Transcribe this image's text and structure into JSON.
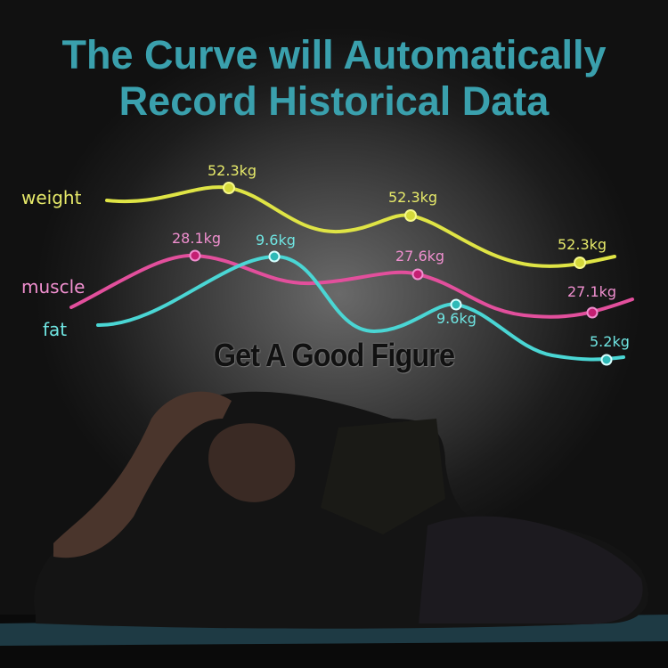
{
  "headline": {
    "line1": "The Curve will Automatically",
    "line2": "Record Historical Data"
  },
  "chart": {
    "series": [
      {
        "name": "weight",
        "color": "#e3e84a",
        "labels": [
          "52.3kg",
          "52.3kg",
          "52.3kg"
        ]
      },
      {
        "name": "muscle",
        "color": "#e8529f",
        "labels": [
          "28.1kg",
          "27.6kg",
          "27.1kg"
        ]
      },
      {
        "name": "fat",
        "color": "#4fd8d6",
        "labels": [
          "9.6kg",
          "9.6kg",
          "5.2kg"
        ]
      }
    ]
  },
  "slogan": "Get A Good Figure"
}
